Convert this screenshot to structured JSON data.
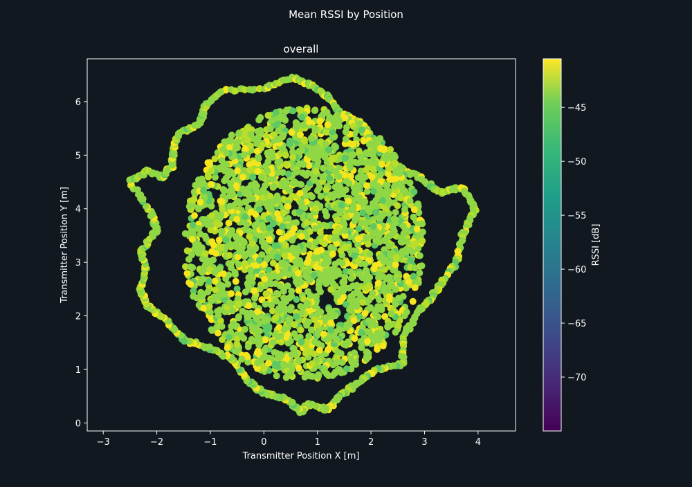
{
  "figure": {
    "suptitle": "Mean RSSI by Position",
    "background": "#121820",
    "axes_color": "#ffffff"
  },
  "chart_data": {
    "type": "scatter",
    "title": "overall",
    "xlabel": "Transmitter Position X [m]",
    "ylabel": "Transmitter Position Y [m]",
    "xlim": [
      -3.3,
      4.7
    ],
    "ylim": [
      -0.15,
      6.8
    ],
    "xticks": [
      -3,
      -2,
      -1,
      0,
      1,
      2,
      3,
      4
    ],
    "yticks": [
      0,
      1,
      2,
      3,
      4,
      5,
      6
    ],
    "grid": false,
    "colormap": "viridis",
    "marker_colors": {
      "dominant": "#8fd744",
      "bright": "#f3e51e",
      "mid": "#b8de29",
      "dark": "#5ec962"
    },
    "series": [
      {
        "description_values": "dense trajectory of measurement points",
        "path": [
          [
            -0.8,
            6.2
          ],
          [
            0.0,
            6.25
          ],
          [
            0.5,
            6.45
          ],
          [
            0.9,
            6.3
          ],
          [
            1.2,
            6.1
          ],
          [
            1.4,
            5.8
          ],
          [
            1.8,
            5.6
          ],
          [
            2.2,
            5.1
          ],
          [
            2.4,
            4.8
          ],
          [
            2.9,
            4.6
          ],
          [
            3.3,
            4.3
          ],
          [
            3.7,
            4.4
          ],
          [
            3.95,
            4.0
          ],
          [
            3.7,
            3.5
          ],
          [
            3.6,
            3.0
          ],
          [
            3.3,
            2.6
          ],
          [
            3.1,
            2.3
          ],
          [
            2.9,
            2.1
          ],
          [
            2.6,
            1.6
          ],
          [
            2.6,
            1.1
          ],
          [
            2.1,
            1.0
          ],
          [
            1.7,
            0.7
          ],
          [
            1.4,
            0.5
          ],
          [
            1.2,
            0.25
          ],
          [
            0.8,
            0.35
          ],
          [
            0.7,
            0.2
          ],
          [
            0.4,
            0.45
          ],
          [
            0.0,
            0.55
          ],
          [
            -0.3,
            0.8
          ],
          [
            -0.6,
            1.2
          ],
          [
            -1.0,
            1.4
          ],
          [
            -1.5,
            1.55
          ],
          [
            -1.8,
            1.9
          ],
          [
            -2.2,
            2.2
          ],
          [
            -2.3,
            2.5
          ],
          [
            -2.2,
            2.9
          ],
          [
            -2.3,
            3.2
          ],
          [
            -2.0,
            3.6
          ],
          [
            -2.1,
            3.9
          ],
          [
            -2.5,
            4.5
          ],
          [
            -2.2,
            4.7
          ],
          [
            -1.9,
            4.6
          ],
          [
            -1.7,
            4.8
          ],
          [
            -1.7,
            5.1
          ],
          [
            -1.6,
            5.4
          ],
          [
            -1.2,
            5.6
          ],
          [
            -1.1,
            5.9
          ],
          [
            -0.8,
            6.2
          ]
        ]
      }
    ],
    "colorbar": {
      "label": "RSSI [dB]",
      "range": [
        -75,
        -40.5
      ],
      "ticks": [
        -70,
        -65,
        -60,
        -55,
        -50,
        -45
      ],
      "tick_labels": [
        "−70",
        "−65",
        "−60",
        "−55",
        "−50",
        "−45"
      ]
    },
    "x_tick_labels": [
      "−3",
      "−2",
      "−1",
      "0",
      "1",
      "2",
      "3",
      "4"
    ],
    "y_tick_labels": [
      "0",
      "1",
      "2",
      "3",
      "4",
      "5",
      "6"
    ]
  }
}
